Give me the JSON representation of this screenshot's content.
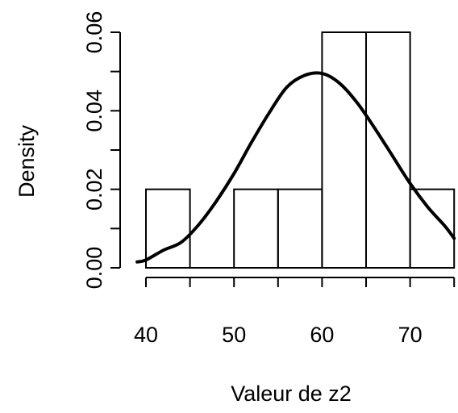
{
  "chart_data": {
    "type": "histogram",
    "title": "",
    "xlabel": "Valeur de z2",
    "ylabel": "Density",
    "xlim": [
      40,
      75
    ],
    "ylim": [
      0,
      0.06
    ],
    "x_ticks": [
      "40",
      "50",
      "60",
      "70"
    ],
    "y_ticks": [
      "0.00",
      "0.02",
      "0.04",
      "0.06"
    ],
    "bins": [
      {
        "x0": 40,
        "x1": 45,
        "density": 0.02
      },
      {
        "x0": 45,
        "x1": 50,
        "density": 0.0
      },
      {
        "x0": 50,
        "x1": 55,
        "density": 0.02
      },
      {
        "x0": 55,
        "x1": 60,
        "density": 0.02
      },
      {
        "x0": 60,
        "x1": 65,
        "density": 0.06
      },
      {
        "x0": 65,
        "x1": 70,
        "density": 0.06
      },
      {
        "x0": 70,
        "x1": 75,
        "density": 0.02
      }
    ],
    "density_curve": {
      "x": [
        39,
        40,
        42,
        44,
        46,
        48,
        50,
        52,
        54,
        56,
        58,
        60,
        62,
        64,
        66,
        68,
        70,
        72,
        74,
        75
      ],
      "y": [
        0.0015,
        0.002,
        0.0045,
        0.0065,
        0.011,
        0.017,
        0.024,
        0.032,
        0.0395,
        0.046,
        0.049,
        0.0495,
        0.047,
        0.042,
        0.0355,
        0.0285,
        0.0215,
        0.0155,
        0.0105,
        0.0075
      ]
    },
    "grid": false,
    "legend": "none"
  }
}
